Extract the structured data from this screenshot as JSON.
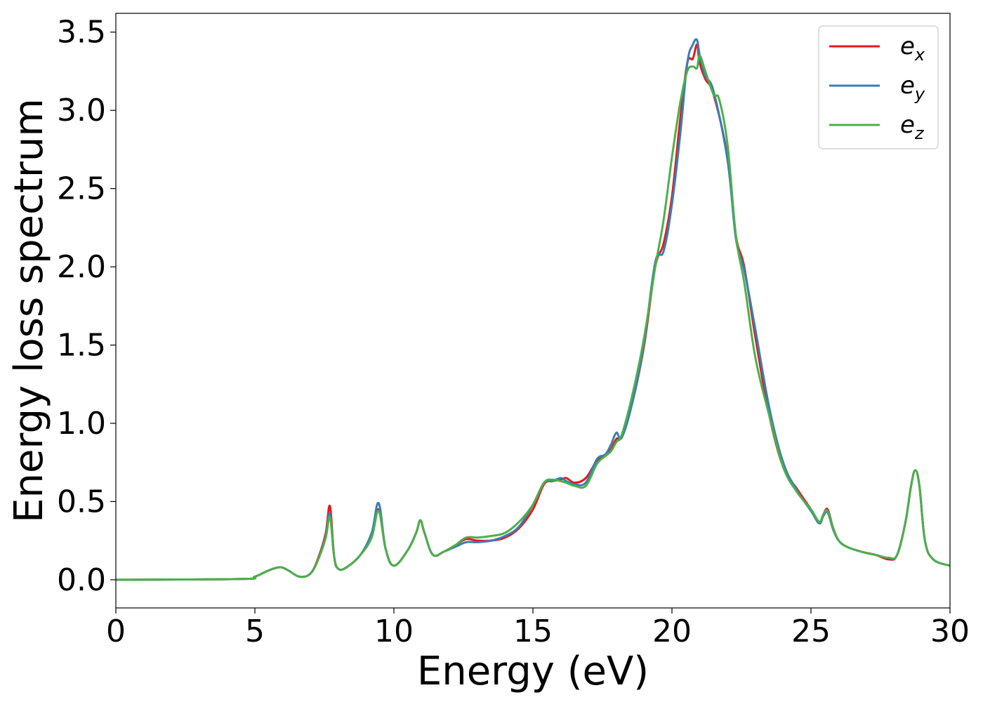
{
  "chart_data": {
    "type": "line",
    "xlabel": "Energy (eV)",
    "ylabel": "Energy loss spectrum",
    "xlim": [
      0,
      30
    ],
    "ylim": [
      -0.18,
      3.62
    ],
    "xticks": [
      0,
      5,
      10,
      15,
      20,
      25,
      30
    ],
    "xtick_labels": [
      "0",
      "5",
      "10",
      "15",
      "20",
      "25",
      "30"
    ],
    "yticks": [
      0.0,
      0.5,
      1.0,
      1.5,
      2.0,
      2.5,
      3.0,
      3.5
    ],
    "ytick_labels": [
      "0.0",
      "0.5",
      "1.0",
      "1.5",
      "2.0",
      "2.5",
      "3.0",
      "3.5"
    ],
    "grid": false,
    "legend_position": "top-right",
    "series": [
      {
        "name": "ex",
        "label_base": "e",
        "label_sub": "x",
        "color": "#e41a1c",
        "x": [
          0,
          4.5,
          5.0,
          5.5,
          5.9,
          6.2,
          6.6,
          7.0,
          7.3,
          7.55,
          7.7,
          7.85,
          8.0,
          8.3,
          8.8,
          9.2,
          9.45,
          9.7,
          10.0,
          10.5,
          10.8,
          10.95,
          11.1,
          11.4,
          11.8,
          12.2,
          12.6,
          13.0,
          13.5,
          14.0,
          14.5,
          15.0,
          15.4,
          15.7,
          16.0,
          16.2,
          16.5,
          16.9,
          17.3,
          17.6,
          17.8,
          18.0,
          18.2,
          18.6,
          19.0,
          19.4,
          19.7,
          20.0,
          20.3,
          20.55,
          20.75,
          20.9,
          21.0,
          21.2,
          21.5,
          22.0,
          22.3,
          22.6,
          23.0,
          23.5,
          24.0,
          24.5,
          25.0,
          25.3,
          25.45,
          25.6,
          25.8,
          26.0,
          26.3,
          26.8,
          27.3,
          27.8,
          28.1,
          28.4,
          28.6,
          28.75,
          28.9,
          29.1,
          29.4,
          30.0
        ],
        "y": [
          0.0,
          0.005,
          0.02,
          0.06,
          0.08,
          0.06,
          0.02,
          0.04,
          0.15,
          0.3,
          0.47,
          0.15,
          0.07,
          0.08,
          0.16,
          0.28,
          0.45,
          0.2,
          0.09,
          0.19,
          0.3,
          0.38,
          0.3,
          0.16,
          0.18,
          0.22,
          0.26,
          0.25,
          0.25,
          0.27,
          0.33,
          0.45,
          0.61,
          0.63,
          0.64,
          0.65,
          0.62,
          0.65,
          0.76,
          0.79,
          0.83,
          0.9,
          0.92,
          1.15,
          1.5,
          2.0,
          2.15,
          2.45,
          2.95,
          3.3,
          3.33,
          3.42,
          3.3,
          3.2,
          3.1,
          2.7,
          2.2,
          2.0,
          1.55,
          1.05,
          0.72,
          0.58,
          0.45,
          0.37,
          0.42,
          0.45,
          0.33,
          0.25,
          0.21,
          0.18,
          0.16,
          0.13,
          0.16,
          0.37,
          0.6,
          0.7,
          0.6,
          0.25,
          0.13,
          0.09
        ]
      },
      {
        "name": "ey",
        "label_base": "e",
        "label_sub": "y",
        "color": "#377eb8",
        "x": [
          0,
          4.5,
          5.0,
          5.5,
          5.9,
          6.2,
          6.6,
          7.0,
          7.3,
          7.55,
          7.7,
          7.85,
          8.0,
          8.3,
          8.8,
          9.2,
          9.45,
          9.7,
          10.0,
          10.5,
          10.8,
          10.95,
          11.1,
          11.4,
          11.8,
          12.2,
          12.6,
          13.0,
          13.5,
          14.0,
          14.5,
          15.0,
          15.4,
          15.7,
          16.0,
          16.2,
          16.5,
          16.9,
          17.3,
          17.6,
          17.8,
          18.0,
          18.2,
          18.6,
          19.0,
          19.4,
          19.7,
          20.0,
          20.3,
          20.55,
          20.75,
          20.9,
          21.0,
          21.2,
          21.5,
          22.0,
          22.3,
          22.6,
          23.0,
          23.5,
          24.0,
          24.5,
          25.0,
          25.3,
          25.45,
          25.6,
          25.8,
          26.0,
          26.3,
          26.8,
          27.3,
          27.8,
          28.1,
          28.4,
          28.6,
          28.75,
          28.9,
          29.1,
          29.4,
          30.0
        ],
        "y": [
          0.0,
          0.005,
          0.02,
          0.06,
          0.08,
          0.06,
          0.02,
          0.04,
          0.14,
          0.28,
          0.42,
          0.15,
          0.07,
          0.08,
          0.16,
          0.3,
          0.49,
          0.2,
          0.09,
          0.19,
          0.3,
          0.38,
          0.3,
          0.16,
          0.18,
          0.21,
          0.24,
          0.24,
          0.25,
          0.28,
          0.34,
          0.48,
          0.62,
          0.63,
          0.65,
          0.63,
          0.61,
          0.62,
          0.77,
          0.8,
          0.86,
          0.94,
          0.91,
          1.15,
          1.52,
          2.03,
          2.1,
          2.4,
          2.85,
          3.3,
          3.42,
          3.45,
          3.35,
          3.22,
          3.12,
          2.68,
          2.18,
          1.98,
          1.6,
          1.1,
          0.75,
          0.57,
          0.44,
          0.36,
          0.41,
          0.43,
          0.32,
          0.25,
          0.21,
          0.18,
          0.16,
          0.14,
          0.16,
          0.37,
          0.6,
          0.7,
          0.6,
          0.25,
          0.13,
          0.09
        ]
      },
      {
        "name": "ez",
        "label_base": "e",
        "label_sub": "z",
        "color": "#4daf4a",
        "x": [
          0,
          4.5,
          5.0,
          5.5,
          5.9,
          6.2,
          6.6,
          7.0,
          7.3,
          7.55,
          7.7,
          7.85,
          8.0,
          8.3,
          8.8,
          9.2,
          9.45,
          9.7,
          10.0,
          10.5,
          10.8,
          10.95,
          11.1,
          11.4,
          11.8,
          12.2,
          12.6,
          13.0,
          13.5,
          14.0,
          14.5,
          15.0,
          15.4,
          15.7,
          16.0,
          16.2,
          16.5,
          16.9,
          17.3,
          17.6,
          17.8,
          18.0,
          18.2,
          18.6,
          19.0,
          19.4,
          19.7,
          20.0,
          20.3,
          20.55,
          20.75,
          20.9,
          21.0,
          21.2,
          21.5,
          21.7,
          22.0,
          22.3,
          22.6,
          23.0,
          23.5,
          24.0,
          24.5,
          25.0,
          25.3,
          25.45,
          25.6,
          25.8,
          26.0,
          26.3,
          26.8,
          27.3,
          27.8,
          28.1,
          28.4,
          28.6,
          28.75,
          28.9,
          29.1,
          29.4,
          30.0
        ],
        "y": [
          0.0,
          0.005,
          0.02,
          0.06,
          0.08,
          0.06,
          0.02,
          0.04,
          0.14,
          0.27,
          0.4,
          0.15,
          0.07,
          0.08,
          0.16,
          0.27,
          0.44,
          0.2,
          0.09,
          0.19,
          0.3,
          0.38,
          0.3,
          0.16,
          0.18,
          0.22,
          0.27,
          0.27,
          0.28,
          0.3,
          0.37,
          0.48,
          0.62,
          0.64,
          0.63,
          0.62,
          0.6,
          0.6,
          0.74,
          0.79,
          0.82,
          0.88,
          0.93,
          1.2,
          1.55,
          2.0,
          2.3,
          2.7,
          3.05,
          3.25,
          3.28,
          3.27,
          3.35,
          3.25,
          3.1,
          3.07,
          2.78,
          2.2,
          1.9,
          1.42,
          1.05,
          0.72,
          0.56,
          0.45,
          0.37,
          0.42,
          0.44,
          0.33,
          0.25,
          0.21,
          0.18,
          0.16,
          0.14,
          0.16,
          0.37,
          0.6,
          0.7,
          0.6,
          0.25,
          0.13,
          0.09
        ]
      }
    ]
  }
}
